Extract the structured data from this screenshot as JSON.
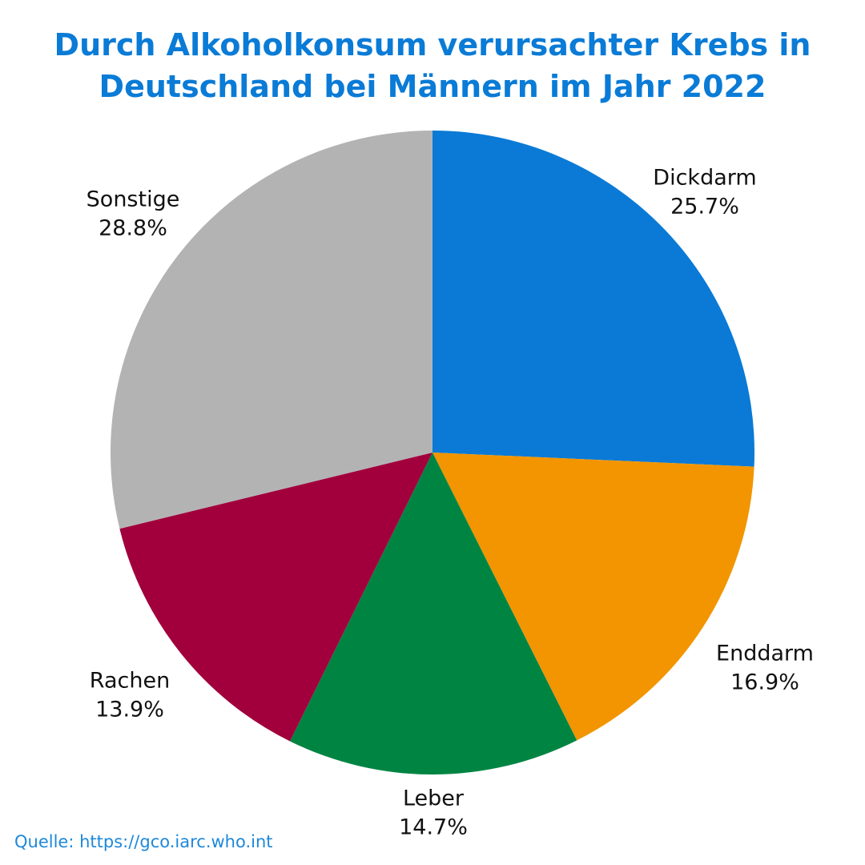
{
  "title": {
    "line1": "Durch Alkoholkonsum verursachter Krebs in",
    "line2": "Deutschland bei Männern im Jahr 2022"
  },
  "source": "Quelle: https://gco.iarc.who.int",
  "chart_data": {
    "type": "pie",
    "start": "12 o'clock",
    "direction": "clockwise",
    "slices": [
      {
        "label": "Dickdarm",
        "value": 25.7,
        "value_label": "25.7%",
        "color": "#0a7ad6"
      },
      {
        "label": "Enddarm",
        "value": 16.9,
        "value_label": "16.9%",
        "color": "#f29500"
      },
      {
        "label": "Leber",
        "value": 14.7,
        "value_label": "14.7%",
        "color": "#008442"
      },
      {
        "label": "Rachen",
        "value": 13.9,
        "value_label": "13.9%",
        "color": "#a1003c"
      },
      {
        "label": "Sonstige",
        "value": 28.8,
        "value_label": "28.8%",
        "color": "#b3b3b3"
      }
    ]
  }
}
